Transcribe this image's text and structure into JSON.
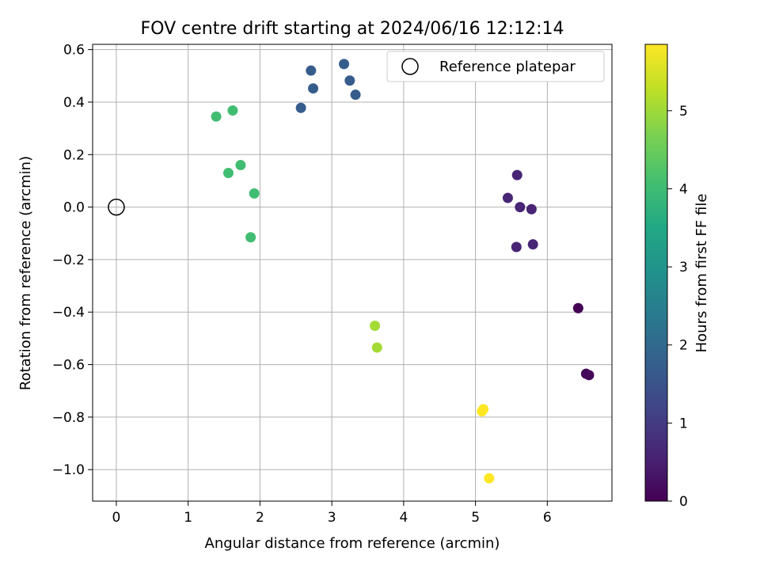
{
  "chart_data": {
    "type": "scatter",
    "title": "FOV centre drift starting at 2024/06/16 12:12:14",
    "xlabel": "Angular distance from reference (arcmin)",
    "ylabel": "Rotation from reference (arcmin)",
    "xlim": [
      -0.33,
      6.9
    ],
    "ylim": [
      -1.12,
      0.62
    ],
    "xticks": [
      0,
      1,
      2,
      3,
      4,
      5,
      6
    ],
    "xtick_labels": [
      "0",
      "1",
      "2",
      "3",
      "4",
      "5",
      "6"
    ],
    "yticks": [
      0.6,
      0.4,
      0.2,
      0.0,
      -0.2,
      -0.4,
      -0.6,
      -0.8,
      -1.0
    ],
    "ytick_labels": [
      "0.6",
      "0.4",
      "0.2",
      "0.0",
      "−0.2",
      "−0.4",
      "−0.6",
      "−0.8",
      "−1.0"
    ],
    "grid": true,
    "legend": {
      "position": "top-right",
      "entries": [
        {
          "label": "Reference platepar",
          "marker": "open-circle",
          "x": 0,
          "y": 0
        }
      ]
    },
    "colorbar": {
      "label": "Hours from first FF file",
      "colormap": "viridis",
      "range": [
        0,
        5.85
      ],
      "ticks": [
        0,
        1,
        2,
        3,
        4,
        5
      ],
      "tick_labels": [
        "0",
        "1",
        "2",
        "3",
        "4",
        "5"
      ]
    },
    "points": [
      {
        "x": 6.43,
        "y": -0.385,
        "hours": 0.0
      },
      {
        "x": 6.54,
        "y": -0.635,
        "hours": 0.05
      },
      {
        "x": 6.58,
        "y": -0.64,
        "hours": 0.1
      },
      {
        "x": 5.58,
        "y": 0.122,
        "hours": 0.6
      },
      {
        "x": 5.45,
        "y": 0.035,
        "hours": 0.6
      },
      {
        "x": 5.62,
        "y": 0.0,
        "hours": 0.6
      },
      {
        "x": 5.78,
        "y": -0.008,
        "hours": 0.6
      },
      {
        "x": 5.57,
        "y": -0.152,
        "hours": 0.6
      },
      {
        "x": 5.8,
        "y": -0.142,
        "hours": 0.6
      },
      {
        "x": 3.17,
        "y": 0.545,
        "hours": 1.7
      },
      {
        "x": 2.71,
        "y": 0.52,
        "hours": 1.7
      },
      {
        "x": 3.25,
        "y": 0.482,
        "hours": 1.7
      },
      {
        "x": 2.74,
        "y": 0.452,
        "hours": 1.7
      },
      {
        "x": 3.33,
        "y": 0.428,
        "hours": 1.7
      },
      {
        "x": 2.57,
        "y": 0.378,
        "hours": 1.7
      },
      {
        "x": 1.62,
        "y": 0.368,
        "hours": 4.05
      },
      {
        "x": 1.39,
        "y": 0.345,
        "hours": 4.05
      },
      {
        "x": 1.73,
        "y": 0.16,
        "hours": 4.05
      },
      {
        "x": 1.56,
        "y": 0.13,
        "hours": 4.05
      },
      {
        "x": 1.92,
        "y": 0.052,
        "hours": 4.05
      },
      {
        "x": 1.87,
        "y": -0.115,
        "hours": 4.05
      },
      {
        "x": 3.6,
        "y": -0.452,
        "hours": 5.05
      },
      {
        "x": 3.63,
        "y": -0.535,
        "hours": 5.05
      },
      {
        "x": 5.11,
        "y": -0.77,
        "hours": 5.85
      },
      {
        "x": 5.09,
        "y": -0.778,
        "hours": 5.85
      },
      {
        "x": 5.19,
        "y": -1.033,
        "hours": 5.85
      }
    ]
  }
}
